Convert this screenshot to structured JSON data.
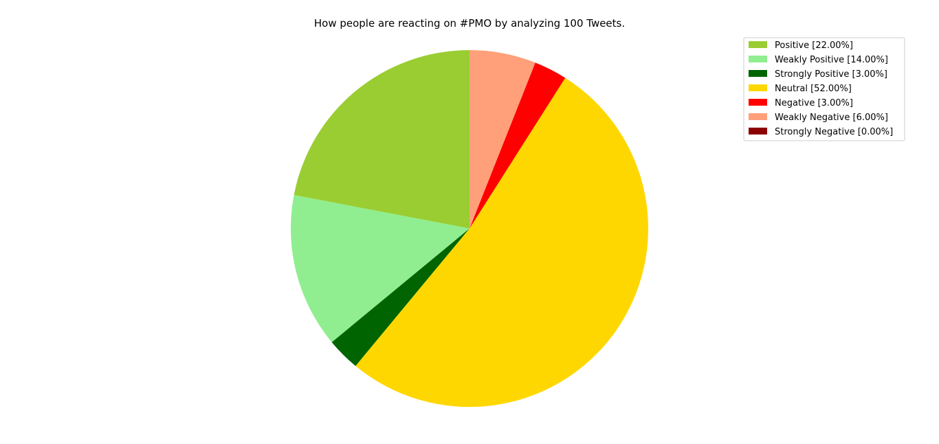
{
  "chart_data": {
    "type": "pie",
    "title": "How people are reacting on #PMO by analyzing 100 Tweets.",
    "start_angle_deg": 90,
    "direction": "counterclockwise",
    "legend_placement": "top-right",
    "slices": [
      {
        "label": "Positive [22.00%]",
        "value": 22,
        "color": "#9acd32"
      },
      {
        "label": "Weakly Positive [14.00%]",
        "value": 14,
        "color": "#90ee90"
      },
      {
        "label": "Strongly Positive [3.00%]",
        "value": 3,
        "color": "#006400"
      },
      {
        "label": "Neutral [52.00%]",
        "value": 52,
        "color": "#ffd700"
      },
      {
        "label": "Negative [3.00%]",
        "value": 3,
        "color": "#ff0000"
      },
      {
        "label": "Weakly Negative [6.00%]",
        "value": 6,
        "color": "#ffa07a"
      },
      {
        "label": "Strongly Negative [0.00%]",
        "value": 0,
        "color": "#8b0000"
      }
    ]
  }
}
